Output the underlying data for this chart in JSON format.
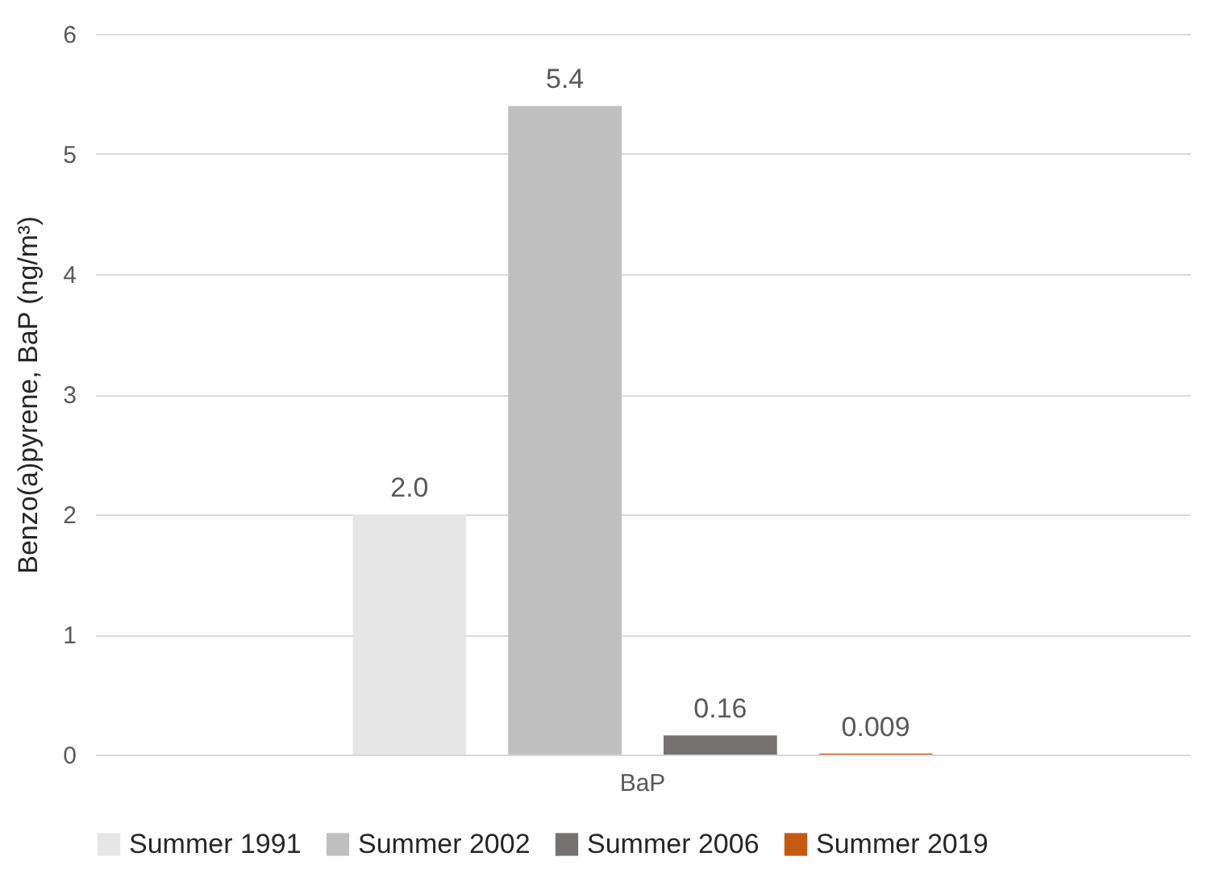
{
  "chart_data": {
    "type": "bar",
    "ylabel": "Benzo(a)pyrene, BaP (ng/m³)",
    "categories": [
      "BaP"
    ],
    "series": [
      {
        "name": "Summer 1991",
        "color": "#e7e6e6",
        "values": [
          2.0
        ],
        "value_labels": [
          "2.0"
        ]
      },
      {
        "name": "Summer 2002",
        "color": "#bfbfbf",
        "values": [
          5.4
        ],
        "value_labels": [
          "5.4"
        ]
      },
      {
        "name": "Summer 2006",
        "color": "#767171",
        "values": [
          0.16
        ],
        "value_labels": [
          "0.16"
        ]
      },
      {
        "name": "Summer 2019",
        "color": "#c55a11",
        "values": [
          0.009
        ],
        "value_labels": [
          "0.009"
        ]
      }
    ],
    "ylim": [
      0,
      6
    ],
    "yticks": [
      0,
      1,
      2,
      3,
      4,
      5,
      6
    ],
    "grid": "y",
    "legend": "bottom"
  }
}
